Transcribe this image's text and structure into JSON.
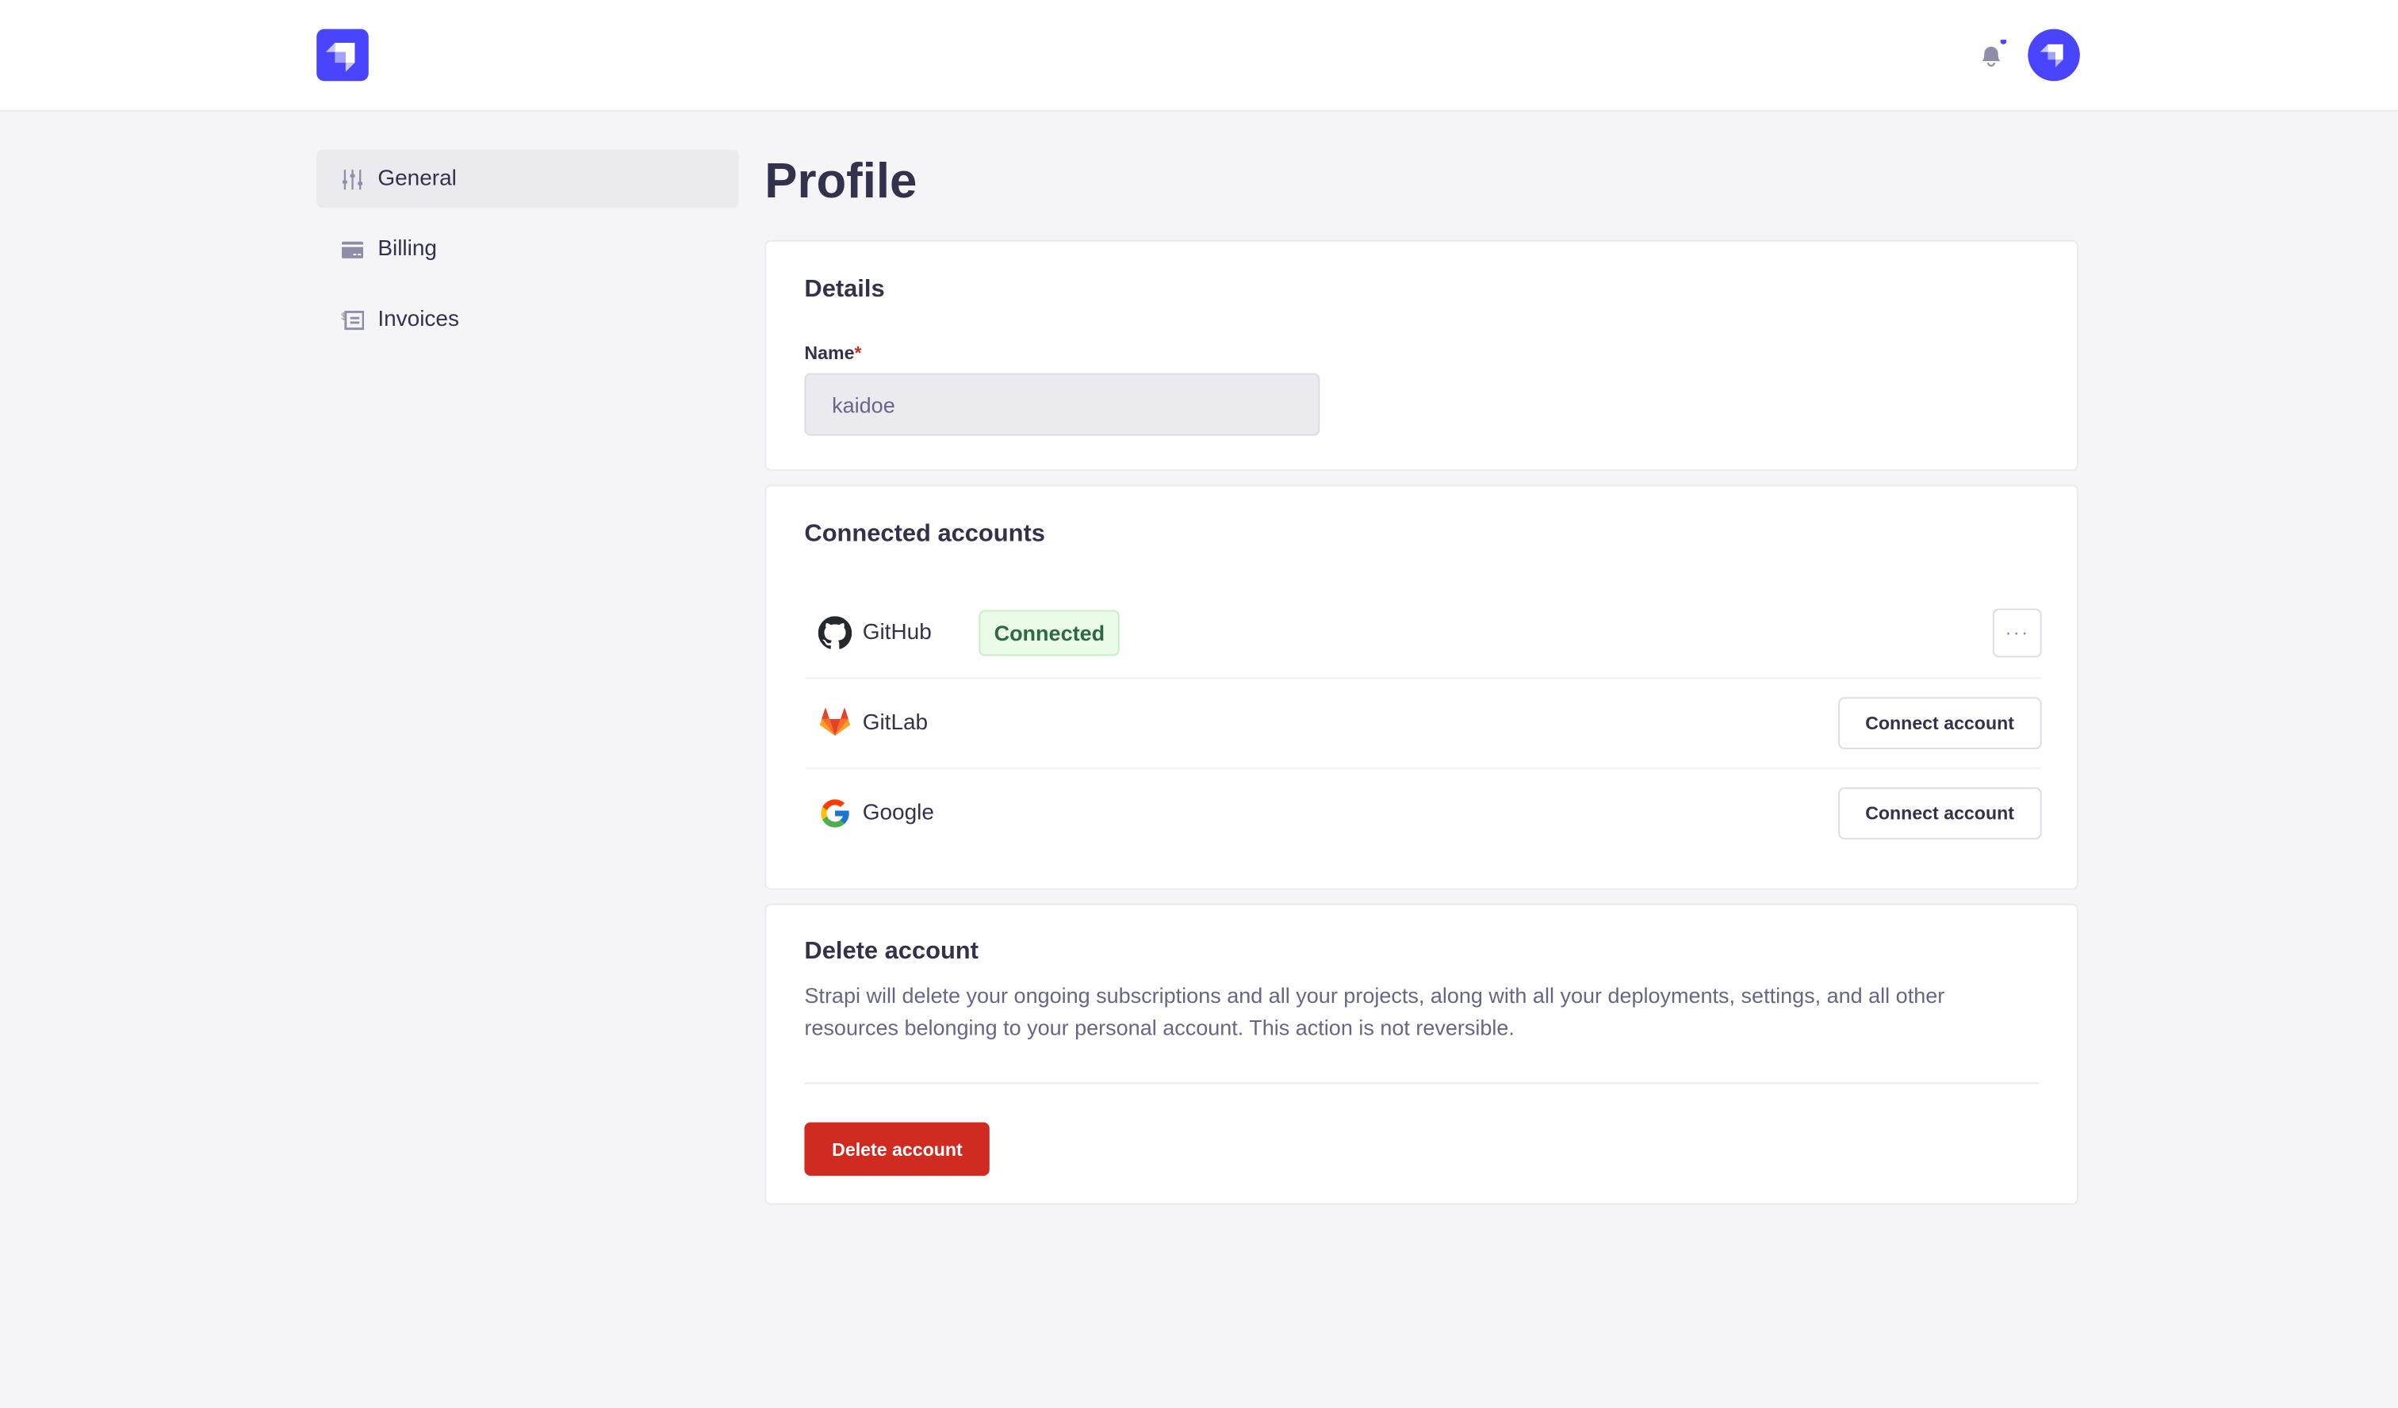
{
  "header": {
    "logo": "Strapi",
    "notification_dot": true,
    "accent": "#4945ff"
  },
  "sidebar": {
    "items": [
      {
        "label": "General",
        "icon": "sliders-icon",
        "active": true
      },
      {
        "label": "Billing",
        "icon": "credit-card-icon"
      },
      {
        "label": "Invoices",
        "icon": "invoice-icon"
      }
    ]
  },
  "page": {
    "title": "Profile"
  },
  "details": {
    "title": "Details",
    "name_label": "Name",
    "required_mark": "*",
    "name_value": "kaidoe"
  },
  "connected": {
    "title": "Connected accounts",
    "accounts": [
      {
        "name": "GitHub",
        "status": "Connected",
        "icon": "github-icon"
      },
      {
        "name": "GitLab",
        "action": "Connect account",
        "icon": "gitlab-icon"
      },
      {
        "name": "Google",
        "action": "Connect account",
        "icon": "google-icon"
      }
    ],
    "more_label": "···"
  },
  "delete": {
    "title": "Delete account",
    "description": "Strapi will delete your ongoing subscriptions and all your projects, along with all your deployments, settings, and all other resources belonging to your personal account. This action is not reversible.",
    "button": "Delete account",
    "danger_color": "#d02b20"
  }
}
